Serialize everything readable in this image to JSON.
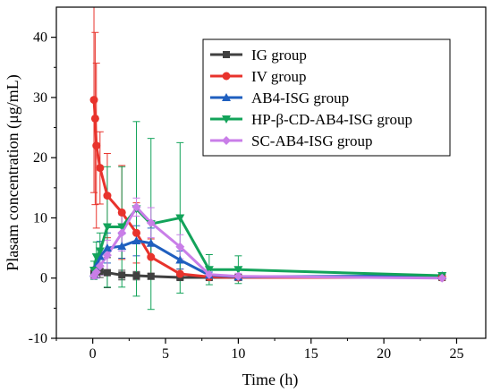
{
  "chart_data": {
    "type": "line",
    "title": "",
    "xlabel": "Time (h)",
    "ylabel": "Plasam concentration (μg/mL)",
    "xlim": [
      -2.5,
      27
    ],
    "ylim": [
      -10,
      45
    ],
    "xticks": [
      0,
      5,
      10,
      15,
      20,
      25
    ],
    "yticks": [
      -10,
      0,
      10,
      20,
      30,
      40
    ],
    "grid": false,
    "legend_position": "top-right",
    "series": [
      {
        "name": "IG group",
        "color": "#404040",
        "marker": "square",
        "x": [
          0.083,
          0.25,
          0.5,
          1,
          2,
          3,
          4,
          6,
          8,
          10,
          24
        ],
        "y": [
          0.8,
          1.0,
          1.1,
          0.9,
          0.5,
          0.4,
          0.3,
          0.1,
          0.1,
          0.1,
          0.1
        ],
        "err": [
          0.8,
          0.9,
          1.0,
          2.5,
          0.8,
          0.7,
          0.5,
          0.3,
          0.2,
          0.2,
          0.1
        ]
      },
      {
        "name": "IV group",
        "color": "#e8332c",
        "marker": "circle",
        "x": [
          0.083,
          0.167,
          0.25,
          0.5,
          1,
          2,
          3,
          4,
          6,
          8,
          10,
          24
        ],
        "y": [
          29.6,
          26.5,
          22.0,
          18.3,
          13.7,
          10.9,
          7.5,
          3.5,
          0.7,
          0.2,
          0.1,
          0.1
        ],
        "err": [
          15.4,
          14.3,
          13.7,
          6.0,
          7.0,
          7.8,
          5.0,
          3.0,
          0.8,
          0.3,
          0.2,
          0.1
        ]
      },
      {
        "name": "AB4-ISG group",
        "color": "#1f5fbf",
        "marker": "triangle-up",
        "x": [
          0.083,
          0.25,
          0.5,
          1,
          2,
          3,
          4,
          6,
          8,
          10,
          24
        ],
        "y": [
          0.8,
          2.0,
          3.6,
          5.0,
          5.3,
          6.2,
          5.8,
          3.0,
          0.5,
          0.2,
          0.4
        ],
        "err": [
          1.0,
          2.0,
          2.5,
          2.5,
          2.0,
          2.5,
          2.5,
          1.5,
          0.5,
          0.3,
          0.3
        ]
      },
      {
        "name": "HP-β-CD-AB4-ISG group",
        "color": "#13a35a",
        "marker": "triangle-down",
        "x": [
          0.083,
          0.25,
          0.5,
          1,
          2,
          3,
          4,
          6,
          8,
          10,
          24
        ],
        "y": [
          1.3,
          3.5,
          4.5,
          8.5,
          8.5,
          11.5,
          9.0,
          10.0,
          1.4,
          1.4,
          0.4
        ],
        "err": [
          1.5,
          2.5,
          3.0,
          10.0,
          10.0,
          14.5,
          14.2,
          12.5,
          2.5,
          2.3,
          0.5
        ]
      },
      {
        "name": "SC-AB4-ISG group",
        "color": "#c97ee8",
        "marker": "diamond",
        "x": [
          0.083,
          0.25,
          0.5,
          1,
          2,
          3,
          4,
          6,
          8,
          10,
          24
        ],
        "y": [
          0.4,
          1.0,
          2.0,
          3.8,
          7.5,
          11.8,
          9.2,
          5.2,
          0.6,
          0.3,
          0.0
        ],
        "err": [
          0.5,
          1.0,
          1.5,
          2.5,
          3.0,
          1.5,
          2.5,
          2.0,
          0.8,
          0.5,
          0.3
        ]
      }
    ]
  }
}
